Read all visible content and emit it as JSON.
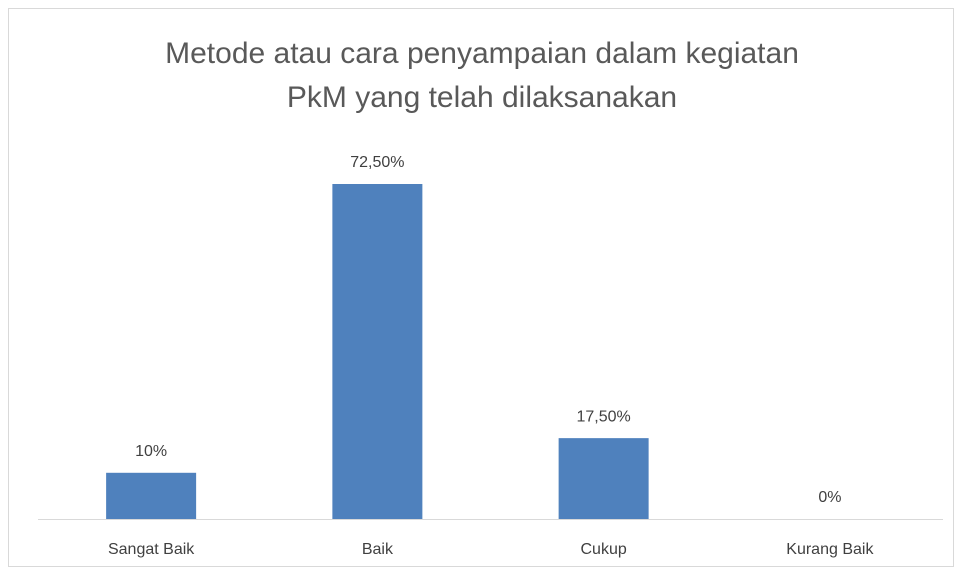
{
  "chart_data": {
    "type": "bar",
    "title": "Metode atau cara penyampaian dalam kegiatan PkM yang telah dilaksanakan",
    "categories": [
      "Sangat Baik",
      "Baik",
      "Cukup",
      "Kurang Baik"
    ],
    "values": [
      10,
      72.5,
      17.5,
      0
    ],
    "value_labels": [
      "10%",
      "72,50%",
      "17,50%",
      "0%"
    ],
    "color": "#4f81bd"
  }
}
